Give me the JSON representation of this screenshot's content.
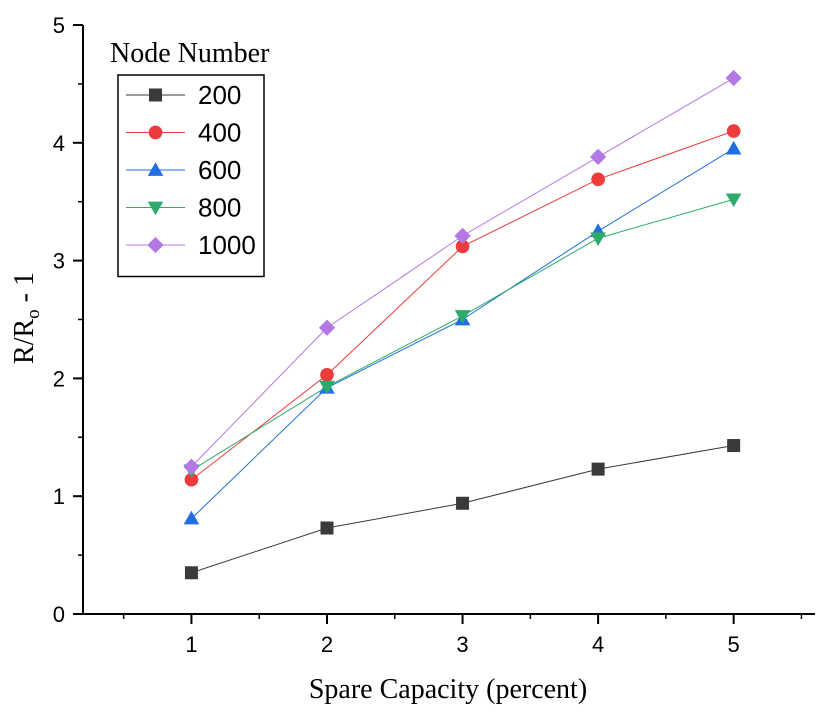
{
  "chart_data": {
    "type": "line",
    "title": "",
    "xlabel": "Spare Capacity (percent)",
    "ylabel": {
      "main": "R/R",
      "sub": "o",
      "tail": " - 1"
    },
    "x": [
      1,
      2,
      3,
      4,
      5
    ],
    "xlim": [
      0.2,
      5.6
    ],
    "ylim": [
      0,
      5
    ],
    "xticks": [
      1,
      2,
      3,
      4,
      5
    ],
    "yticks": [
      0,
      1,
      2,
      3,
      4,
      5
    ],
    "legend": {
      "title": "Node Number",
      "placement": "top-left"
    },
    "series": [
      {
        "name": "200",
        "marker": "square",
        "color": "#3a3a3a",
        "values": [
          0.35,
          0.73,
          0.94,
          1.23,
          1.43
        ]
      },
      {
        "name": "400",
        "marker": "circle",
        "color": "#ee3b3b",
        "values": [
          1.14,
          2.03,
          3.12,
          3.69,
          4.1
        ]
      },
      {
        "name": "600",
        "marker": "triangle-up",
        "color": "#1f6fe0",
        "values": [
          0.81,
          1.92,
          2.5,
          3.25,
          3.95
        ]
      },
      {
        "name": "800",
        "marker": "triangle-down",
        "color": "#2eaa6a",
        "values": [
          1.22,
          1.93,
          2.53,
          3.19,
          3.52
        ]
      },
      {
        "name": "1000",
        "marker": "diamond",
        "color": "#b478e4",
        "values": [
          1.25,
          2.43,
          3.21,
          3.88,
          4.55
        ]
      }
    ]
  }
}
